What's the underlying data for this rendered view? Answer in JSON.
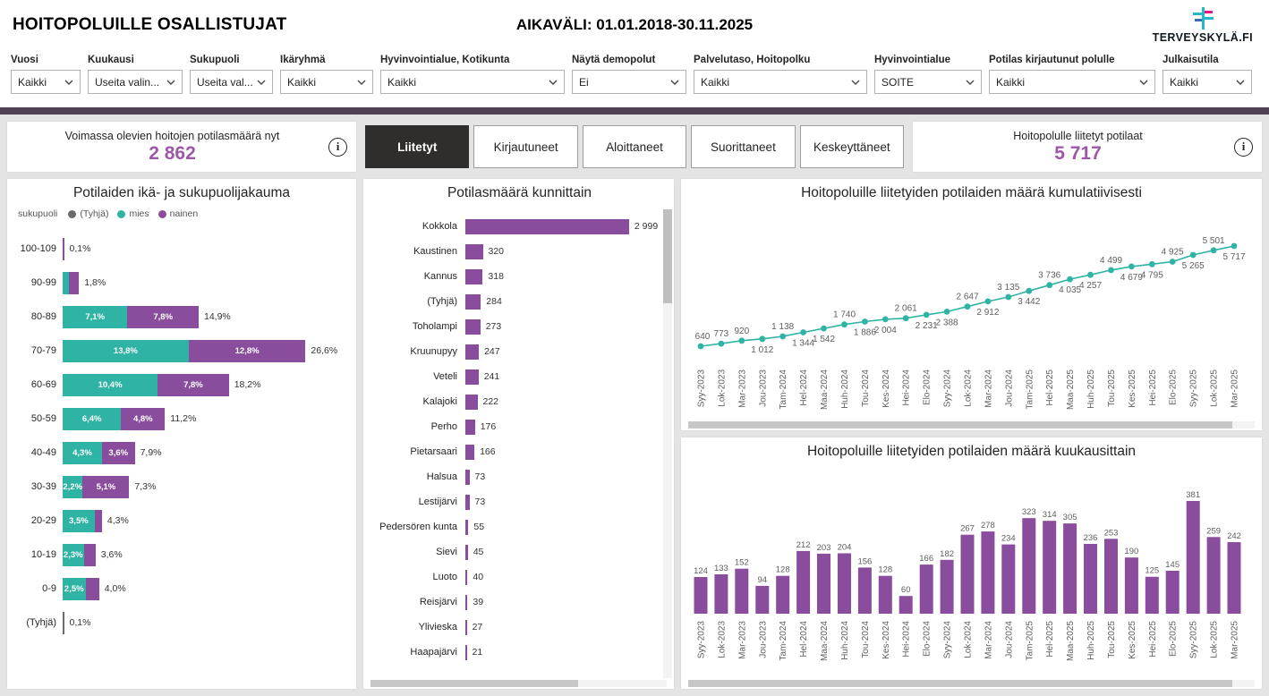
{
  "colors": {
    "purple": "#8A4D9E",
    "teal": "#2FB3A4",
    "tyhja_gray": "#6A6A6A",
    "value_purple": "#9D57A8",
    "tab_active_bg": "#2F2E2C",
    "strip": "#4D4355",
    "label_gray": "#605E5C"
  },
  "header": {
    "title": "HOITOPOLUILLE OSALLISTUJAT",
    "date_range": "AIKAVÄLI: 01.01.2018-30.11.2025",
    "logo_text": "TERVEYSKYLÄ.FI"
  },
  "filters": [
    {
      "label": "Vuosi",
      "value": "Kaikki"
    },
    {
      "label": "Kuukausi",
      "value": "Useita valin..."
    },
    {
      "label": "Sukupuoli",
      "value": "Useita val..."
    },
    {
      "label": "Ikäryhmä",
      "value": "Kaikki"
    },
    {
      "label": "Hyvinvointialue, Kotikunta",
      "value": "Kaikki"
    },
    {
      "label": "Näytä demopolut",
      "value": "Ei"
    },
    {
      "label": "Palvelutaso, Hoitopolku",
      "value": "Kaikki"
    },
    {
      "label": "Hyvinvointialue",
      "value": "SOITE"
    },
    {
      "label": "Potilas kirjautunut polulle",
      "value": "Kaikki"
    },
    {
      "label": "Julkaisutila",
      "value": "Kaikki"
    }
  ],
  "kpi_left": {
    "title": "Voimassa olevien hoitojen potilasmäärä nyt",
    "value": "2 862"
  },
  "kpi_right": {
    "title": "Hoitopolulle liitetyt potilaat",
    "value": "5 717"
  },
  "tabs": [
    {
      "label": "Liitetyt",
      "active": true
    },
    {
      "label": "Kirjautuneet",
      "active": false
    },
    {
      "label": "Aloittaneet",
      "active": false
    },
    {
      "label": "Suorittaneet",
      "active": false
    },
    {
      "label": "Keskeyttäneet",
      "active": false
    }
  ],
  "chart_data": [
    {
      "type": "bar",
      "subtype": "horizontal-stacked",
      "title": "Potilaiden ikä- ja sukupuolijakauma",
      "legend_title": "sukupuoli",
      "legend": [
        {
          "label": "(Tyhjä)",
          "color": "#6A6A6A"
        },
        {
          "label": "mies",
          "color": "#2FB3A4"
        },
        {
          "label": "nainen",
          "color": "#8A4D9E"
        }
      ],
      "unit": "%",
      "rows": [
        {
          "age": "100-109",
          "mies": 0,
          "nainen": 0.1,
          "tyhja": 0,
          "mies_label": "",
          "nainen_label": "",
          "total_label": "0,1%"
        },
        {
          "age": "90-99",
          "mies": 0.7,
          "nainen": 1.1,
          "tyhja": 0,
          "mies_label": "",
          "nainen_label": "",
          "total_label": "1,8%"
        },
        {
          "age": "80-89",
          "mies": 7.1,
          "nainen": 7.8,
          "tyhja": 0,
          "mies_label": "7,1%",
          "nainen_label": "7,8%",
          "total_label": "14,9%"
        },
        {
          "age": "70-79",
          "mies": 13.8,
          "nainen": 12.8,
          "tyhja": 0,
          "mies_label": "13,8%",
          "nainen_label": "12,8%",
          "total_label": "26,6%"
        },
        {
          "age": "60-69",
          "mies": 10.4,
          "nainen": 7.8,
          "tyhja": 0,
          "mies_label": "10,4%",
          "nainen_label": "7,8%",
          "total_label": "18,2%"
        },
        {
          "age": "50-59",
          "mies": 6.4,
          "nainen": 4.8,
          "tyhja": 0,
          "mies_label": "6,4%",
          "nainen_label": "4,8%",
          "total_label": "11,2%"
        },
        {
          "age": "40-49",
          "mies": 4.3,
          "nainen": 3.6,
          "tyhja": 0,
          "mies_label": "4,3%",
          "nainen_label": "3,6%",
          "total_label": "7,9%"
        },
        {
          "age": "30-39",
          "mies": 2.2,
          "nainen": 5.1,
          "tyhja": 0,
          "mies_label": "2,2%",
          "nainen_label": "5,1%",
          "total_label": "7,3%"
        },
        {
          "age": "20-29",
          "mies": 3.5,
          "nainen": 0.8,
          "tyhja": 0,
          "mies_label": "3,5%",
          "nainen_label": "",
          "total_label": "4,3%"
        },
        {
          "age": "10-19",
          "mies": 2.3,
          "nainen": 1.3,
          "tyhja": 0,
          "mies_label": "2,3%",
          "nainen_label": "",
          "total_label": "3,6%"
        },
        {
          "age": "0-9",
          "mies": 2.5,
          "nainen": 1.5,
          "tyhja": 0,
          "mies_label": "2,5%",
          "nainen_label": "",
          "total_label": "4,0%"
        },
        {
          "age": "(Tyhjä)",
          "mies": 0,
          "nainen": 0,
          "tyhja": 0.1,
          "mies_label": "",
          "nainen_label": "",
          "total_label": "0,1%"
        }
      ]
    },
    {
      "type": "bar",
      "subtype": "horizontal",
      "title": "Potilasmäärä kunnittain",
      "rows": [
        {
          "name": "Kokkola",
          "value": 2999,
          "label": "2 999"
        },
        {
          "name": "Kaustinen",
          "value": 320,
          "label": "320"
        },
        {
          "name": "Kannus",
          "value": 318,
          "label": "318"
        },
        {
          "name": "(Tyhjä)",
          "value": 284,
          "label": "284"
        },
        {
          "name": "Toholampi",
          "value": 273,
          "label": "273"
        },
        {
          "name": "Kruunupyy",
          "value": 247,
          "label": "247"
        },
        {
          "name": "Veteli",
          "value": 241,
          "label": "241"
        },
        {
          "name": "Kalajoki",
          "value": 222,
          "label": "222"
        },
        {
          "name": "Perho",
          "value": 176,
          "label": "176"
        },
        {
          "name": "Pietarsaari",
          "value": 166,
          "label": "166"
        },
        {
          "name": "Halsua",
          "value": 73,
          "label": "73"
        },
        {
          "name": "Lestijärvi",
          "value": 73,
          "label": "73"
        },
        {
          "name": "Pedersören kunta",
          "value": 55,
          "label": "55"
        },
        {
          "name": "Sievi",
          "value": 45,
          "label": "45"
        },
        {
          "name": "Luoto",
          "value": 40,
          "label": "40"
        },
        {
          "name": "Reisjärvi",
          "value": 39,
          "label": "39"
        },
        {
          "name": "Ylivieska",
          "value": 27,
          "label": "27"
        },
        {
          "name": "Haapajärvi",
          "value": 21,
          "label": "21"
        }
      ]
    },
    {
      "type": "line",
      "title": "Hoitopoluille liitetyiden potilaiden määrä kumulatiivisesti",
      "x": [
        "Syy-2023",
        "Lok-2023",
        "Mar-2023",
        "Jou-2023",
        "Tam-2024",
        "Hel-2024",
        "Maa-2024",
        "Huh-2024",
        "Tou-2024",
        "Kes-2024",
        "Hei-2024",
        "Elo-2024",
        "Syy-2024",
        "Lok-2024",
        "Mar-2024",
        "Jou-2024",
        "Tam-2025",
        "Hel-2025",
        "Maa-2025",
        "Huh-2025",
        "Tou-2025",
        "Kes-2025",
        "Hei-2025",
        "Elo-2025",
        "Syy-2025",
        "Lok-2025",
        "Mar-2025"
      ],
      "values": [
        640,
        773,
        920,
        1012,
        1138,
        1344,
        1542,
        1740,
        1886,
        2004,
        2061,
        2231,
        2388,
        2647,
        2912,
        3135,
        3442,
        3736,
        4035,
        4257,
        4499,
        4679,
        4795,
        4925,
        5265,
        5501,
        5717
      ],
      "labels": [
        "640",
        "773",
        "920",
        "1 012",
        "1 138",
        "1 344",
        "1 542",
        "1 740",
        "1 886",
        "2 004",
        "2 061",
        "2 231",
        "2 388",
        "2 647",
        "2 912",
        "3 135",
        "3 442",
        "3 736",
        "4 035",
        "4 257",
        "4 499",
        "4 679",
        "4 795",
        "4 925",
        "5 265",
        "5 501",
        "5 717"
      ],
      "label_positions": [
        "above",
        "above",
        "above",
        "below",
        "above",
        "below",
        "below",
        "above",
        "below",
        "below",
        "above",
        "below",
        "below",
        "above",
        "below",
        "above",
        "below",
        "above",
        "below",
        "below",
        "above",
        "below",
        "below",
        "above",
        "below",
        "above",
        "below"
      ]
    },
    {
      "type": "bar",
      "title": "Hoitopoluille liitetyiden potilaiden määrä kuukausittain",
      "x": [
        "Syy-2023",
        "Lok-2023",
        "Mar-2023",
        "Jou-2023",
        "Tam-2024",
        "Hel-2024",
        "Maa-2024",
        "Huh-2024",
        "Tou-2024",
        "Kes-2024",
        "Hei-2024",
        "Elo-2024",
        "Syy-2024",
        "Lok-2024",
        "Mar-2024",
        "Jou-2024",
        "Tam-2025",
        "Hel-2025",
        "Maa-2025",
        "Huh-2025",
        "Tou-2025",
        "Kes-2025",
        "Hei-2025",
        "Elo-2025",
        "Syy-2025",
        "Lok-2025",
        "Mar-2025"
      ],
      "values": [
        124,
        133,
        152,
        94,
        128,
        212,
        203,
        204,
        156,
        128,
        60,
        166,
        182,
        267,
        278,
        234,
        323,
        314,
        305,
        236,
        253,
        190,
        125,
        145,
        381,
        259,
        242
      ],
      "labels": [
        "124",
        "133",
        "152",
        "94",
        "128",
        "212",
        "203",
        "204",
        "156",
        "128",
        "60",
        "166",
        "182",
        "267",
        "278",
        "234",
        "323",
        "314",
        "305",
        "236",
        "253",
        "190",
        "125",
        "145",
        "381",
        "259",
        "242"
      ]
    }
  ]
}
